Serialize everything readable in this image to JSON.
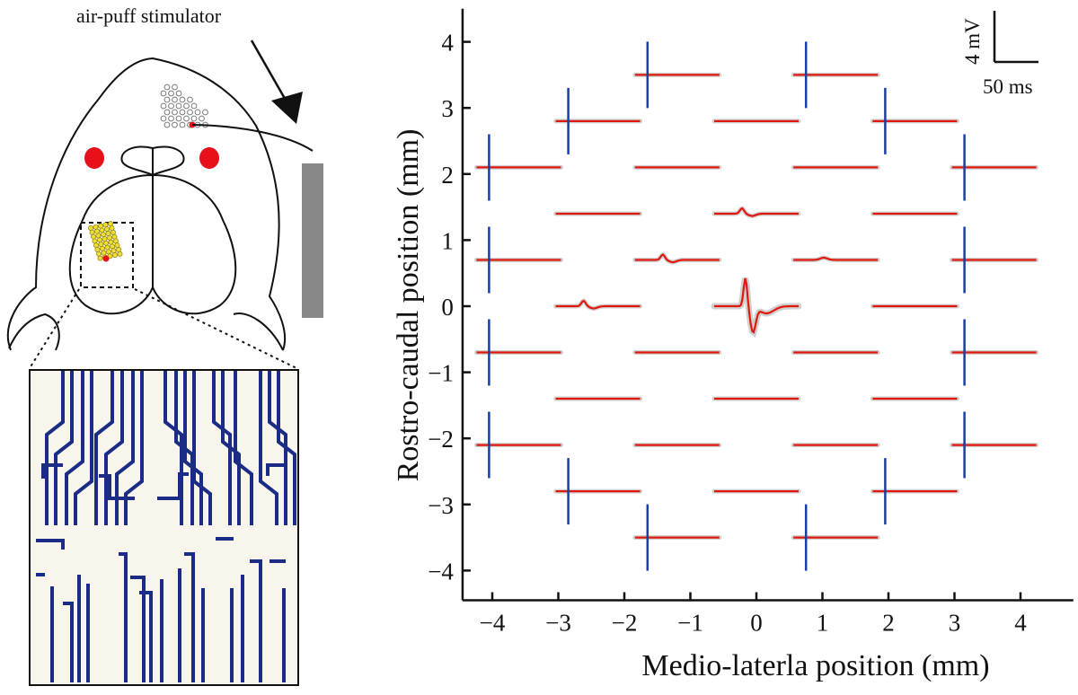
{
  "left_panel": {
    "stimulator_label": "air-puff stimulator"
  },
  "scale_bar": {
    "voltage_label": "4 mV",
    "time_label": "50 ms"
  },
  "colors": {
    "trace": "#e0180c",
    "trace_shadow": "#bcbcbc",
    "stim_marker": "#1a3ea8",
    "electrode": "#1b2c86",
    "dot_red": "#e8101a",
    "dot_yellow": "#f0df30",
    "stimulator_bar": "#888888"
  },
  "chart_data": {
    "type": "multi-panel electrode map (waveform traces positioned at recording sites)",
    "xlabel": "Medio-laterla position (mm)",
    "ylabel": "Rostro-caudal position (mm)",
    "x_ticks": [
      "-4",
      "-3",
      "-2",
      "-1",
      "0",
      "1",
      "2",
      "3",
      "4"
    ],
    "y_ticks": [
      "4",
      "3",
      "2",
      "1",
      "0",
      "-1",
      "-2",
      "-3",
      "-4"
    ],
    "xlim": [
      -4.45,
      4.8
    ],
    "ylim": [
      -4.45,
      4.5
    ],
    "grid": false,
    "sites": [
      {
        "x": -3.6,
        "y": 2.1,
        "stim": true,
        "response": "flat"
      },
      {
        "x": -3.6,
        "y": 0.7,
        "stim": true,
        "response": "flat"
      },
      {
        "x": -3.6,
        "y": -0.7,
        "stim": true,
        "response": "flat"
      },
      {
        "x": -3.6,
        "y": -2.1,
        "stim": true,
        "response": "flat"
      },
      {
        "x": -2.4,
        "y": 2.8,
        "stim": true,
        "response": "flat"
      },
      {
        "x": -2.4,
        "y": 1.4,
        "stim": false,
        "response": "flat"
      },
      {
        "x": -2.4,
        "y": 0.0,
        "stim": false,
        "response": "small"
      },
      {
        "x": -2.4,
        "y": -1.4,
        "stim": false,
        "response": "flat"
      },
      {
        "x": -2.4,
        "y": -2.8,
        "stim": true,
        "response": "flat"
      },
      {
        "x": -1.2,
        "y": 3.5,
        "stim": true,
        "response": "flat"
      },
      {
        "x": -1.2,
        "y": 2.1,
        "stim": false,
        "response": "flat"
      },
      {
        "x": -1.2,
        "y": 0.7,
        "stim": false,
        "response": "small"
      },
      {
        "x": -1.2,
        "y": -0.7,
        "stim": false,
        "response": "flat"
      },
      {
        "x": -1.2,
        "y": -2.1,
        "stim": false,
        "response": "flat"
      },
      {
        "x": -1.2,
        "y": -3.5,
        "stim": true,
        "response": "flat"
      },
      {
        "x": 0.0,
        "y": 2.8,
        "stim": false,
        "response": "flat"
      },
      {
        "x": 0.0,
        "y": 1.4,
        "stim": false,
        "response": "small"
      },
      {
        "x": 0.0,
        "y": 0.0,
        "stim": false,
        "response": "large"
      },
      {
        "x": 0.0,
        "y": -1.4,
        "stim": false,
        "response": "flat"
      },
      {
        "x": 0.0,
        "y": -2.8,
        "stim": false,
        "response": "flat"
      },
      {
        "x": 1.2,
        "y": 3.5,
        "stim": true,
        "response": "flat"
      },
      {
        "x": 1.2,
        "y": 2.1,
        "stim": false,
        "response": "flat"
      },
      {
        "x": 1.2,
        "y": 0.7,
        "stim": false,
        "response": "tiny"
      },
      {
        "x": 1.2,
        "y": -0.7,
        "stim": false,
        "response": "flat"
      },
      {
        "x": 1.2,
        "y": -2.1,
        "stim": false,
        "response": "flat"
      },
      {
        "x": 1.2,
        "y": -3.5,
        "stim": true,
        "response": "flat"
      },
      {
        "x": 2.4,
        "y": 2.8,
        "stim": true,
        "response": "flat"
      },
      {
        "x": 2.4,
        "y": 1.4,
        "stim": false,
        "response": "flat"
      },
      {
        "x": 2.4,
        "y": 0.0,
        "stim": false,
        "response": "flat"
      },
      {
        "x": 2.4,
        "y": -1.4,
        "stim": false,
        "response": "flat"
      },
      {
        "x": 2.4,
        "y": -2.8,
        "stim": true,
        "response": "flat"
      },
      {
        "x": 3.6,
        "y": 2.1,
        "stim": true,
        "response": "flat"
      },
      {
        "x": 3.6,
        "y": 0.7,
        "stim": true,
        "response": "flat"
      },
      {
        "x": 3.6,
        "y": -0.7,
        "stim": true,
        "response": "flat"
      },
      {
        "x": 3.6,
        "y": -2.1,
        "stim": true,
        "response": "flat"
      }
    ]
  }
}
